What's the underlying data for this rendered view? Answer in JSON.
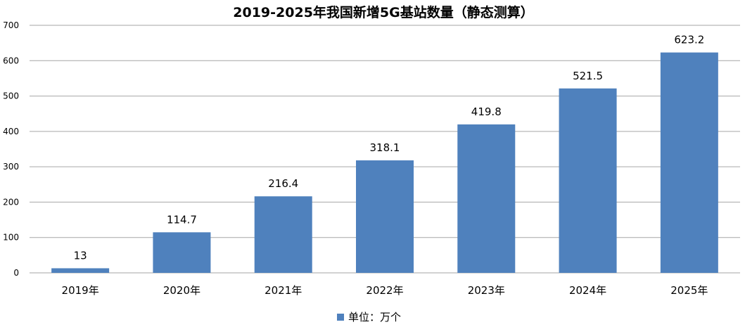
{
  "chart_data": {
    "type": "bar",
    "title": "2019-2025年我国新增5G基站数量（静态测算）",
    "categories": [
      "2019年",
      "2020年",
      "2021年",
      "2022年",
      "2023年",
      "2024年",
      "2025年"
    ],
    "series": [
      {
        "name": "单位：万个",
        "values": [
          13,
          114.7,
          216.4,
          318.1,
          419.8,
          521.5,
          623.2
        ],
        "color": "#4f81bd"
      }
    ],
    "data_labels": [
      "13",
      "114.7",
      "216.4",
      "318.1",
      "419.8",
      "521.5",
      "623.2"
    ],
    "ylim": [
      0,
      700
    ],
    "yticks": [
      0,
      100,
      200,
      300,
      400,
      500,
      600,
      700
    ],
    "xlabel": "",
    "ylabel": "",
    "grid": true,
    "gridline_color": "#a6a6a6",
    "legend_position": "bottom"
  }
}
